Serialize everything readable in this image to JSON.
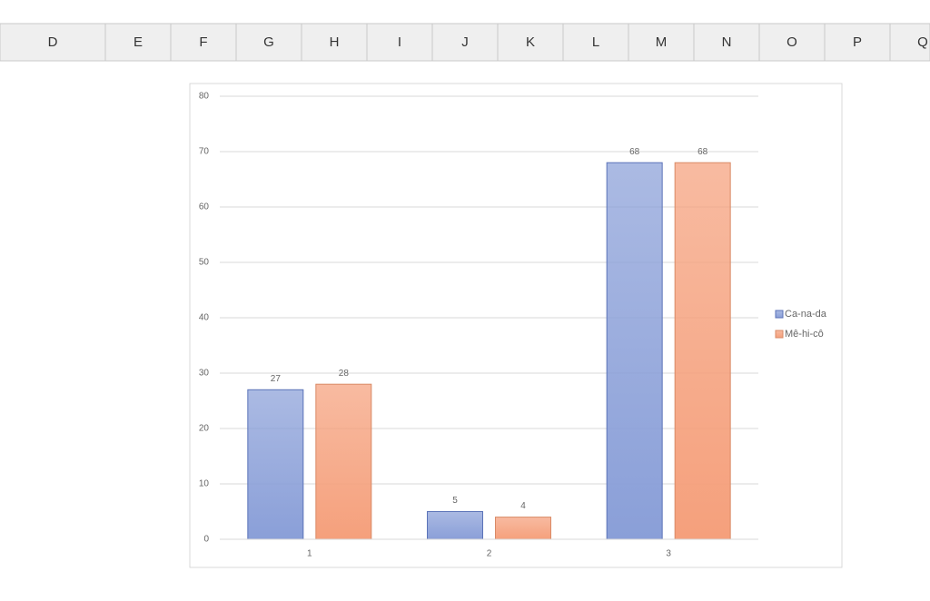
{
  "header": {
    "columns": [
      "D",
      "E",
      "F",
      "G",
      "H",
      "I",
      "J",
      "K",
      "L",
      "M",
      "N",
      "O",
      "P",
      "Q"
    ]
  },
  "chart_data": {
    "type": "bar",
    "categories": [
      "1",
      "2",
      "3"
    ],
    "series": [
      {
        "name": "Ca-na-da",
        "color": "#8a9fd8",
        "values": [
          27,
          5,
          68
        ]
      },
      {
        "name": "Mê-hi-cô",
        "color": "#f5a07c",
        "values": [
          28,
          4,
          68
        ]
      }
    ],
    "ylim": [
      0,
      80
    ],
    "yticks": [
      0,
      10,
      20,
      30,
      40,
      50,
      60,
      70,
      80
    ],
    "grid": true,
    "legend": "right"
  }
}
